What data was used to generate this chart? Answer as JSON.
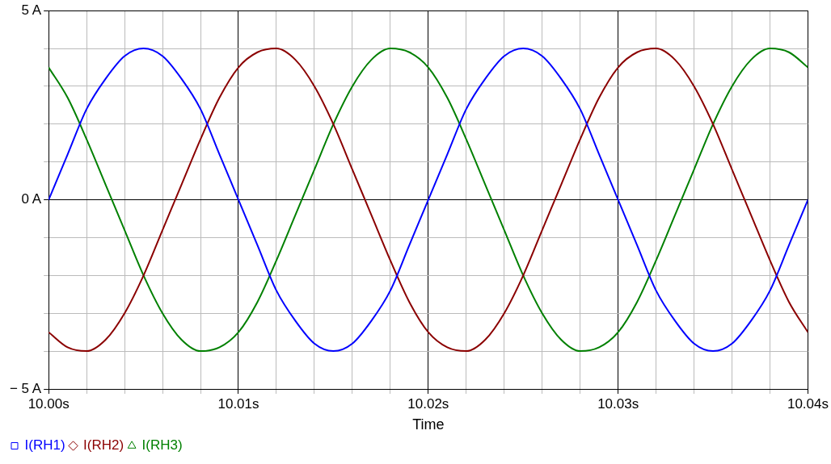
{
  "chart_data": {
    "type": "line",
    "xlabel": "Time",
    "legend": "bottom left",
    "grid": true,
    "line_style": "solid",
    "x": [
      10.0,
      10.001,
      10.002,
      10.003,
      10.004,
      10.005,
      10.006,
      10.007,
      10.008,
      10.009,
      10.01,
      10.011,
      10.012,
      10.013,
      10.014,
      10.015,
      10.016,
      10.017,
      10.018,
      10.019,
      10.02,
      10.021,
      10.022,
      10.023,
      10.024,
      10.025,
      10.026,
      10.027,
      10.028,
      10.029,
      10.03,
      10.031,
      10.032,
      10.033,
      10.034,
      10.035,
      10.036,
      10.037,
      10.038,
      10.039,
      10.04
    ],
    "xlim": [
      10.0,
      10.04
    ],
    "xticks": [
      {
        "value": 10.0,
        "label": "10.00s"
      },
      {
        "value": 10.002,
        "label": null
      },
      {
        "value": 10.004,
        "label": null
      },
      {
        "value": 10.006,
        "label": null
      },
      {
        "value": 10.008,
        "label": null
      },
      {
        "value": 10.01,
        "label": "10.01s"
      },
      {
        "value": 10.012,
        "label": null
      },
      {
        "value": 10.014,
        "label": null
      },
      {
        "value": 10.016,
        "label": null
      },
      {
        "value": 10.018,
        "label": null
      },
      {
        "value": 10.02,
        "label": "10.02s"
      },
      {
        "value": 10.022,
        "label": null
      },
      {
        "value": 10.024,
        "label": null
      },
      {
        "value": 10.026,
        "label": null
      },
      {
        "value": 10.028,
        "label": null
      },
      {
        "value": 10.03,
        "label": "10.03s"
      },
      {
        "value": 10.032,
        "label": null
      },
      {
        "value": 10.034,
        "label": null
      },
      {
        "value": 10.036,
        "label": null
      },
      {
        "value": 10.038,
        "label": null
      },
      {
        "value": 10.04,
        "label": "10.04s"
      }
    ],
    "ylim": [
      -5,
      5
    ],
    "yticks": [
      {
        "value": -5,
        "label": "− 5 A"
      },
      {
        "value": -4,
        "label": null
      },
      {
        "value": -3,
        "label": null
      },
      {
        "value": -2,
        "label": null
      },
      {
        "value": -1,
        "label": null
      },
      {
        "value": 0,
        "label": "0 A"
      },
      {
        "value": 1,
        "label": null
      },
      {
        "value": 2,
        "label": null
      },
      {
        "value": 3,
        "label": null
      },
      {
        "value": 4,
        "label": null
      },
      {
        "value": 5,
        "label": "5 A"
      }
    ],
    "series": [
      {
        "name": "I(RH1)",
        "color": "#0000ff",
        "values": [
          0,
          1.2,
          2.4,
          3.2,
          3.8,
          4,
          3.8,
          3.2,
          2.4,
          1.2,
          0,
          -1.2,
          -2.4,
          -3.2,
          -3.8,
          -4,
          -3.8,
          -3.2,
          -2.4,
          -1.2,
          0,
          1.2,
          2.4,
          3.2,
          3.8,
          4,
          3.8,
          3.2,
          2.4,
          1.2,
          0,
          -1.2,
          -2.4,
          -3.2,
          -3.8,
          -4,
          -3.8,
          -3.2,
          -2.4,
          -1.2,
          0
        ]
      },
      {
        "name": "I(RH2)",
        "color": "#8b0000",
        "values": [
          -3.5,
          -3.9,
          -4.0,
          -3.7,
          -3.0,
          -2.0,
          -0.8,
          0.4,
          1.6,
          2.7,
          3.5,
          3.9,
          4.0,
          3.7,
          3.0,
          2.0,
          0.8,
          -0.4,
          -1.6,
          -2.7,
          -3.5,
          -3.9,
          -4.0,
          -3.7,
          -3.0,
          -2.0,
          -0.8,
          0.4,
          1.6,
          2.7,
          3.5,
          3.9,
          4.0,
          3.7,
          3.0,
          2.0,
          0.8,
          -0.4,
          -1.6,
          -2.7,
          -3.5
        ]
      },
      {
        "name": "I(RH3)",
        "color": "#008000",
        "values": [
          3.5,
          2.7,
          1.6,
          0.4,
          -0.8,
          -2.0,
          -3.0,
          -3.7,
          -4.0,
          -3.9,
          -3.5,
          -2.7,
          -1.6,
          -0.4,
          0.8,
          2.0,
          3.0,
          3.7,
          4.0,
          3.9,
          3.5,
          2.7,
          1.6,
          0.4,
          -0.8,
          -2.0,
          -3.0,
          -3.7,
          -4.0,
          -3.9,
          -3.5,
          -2.7,
          -1.6,
          -0.4,
          0.8,
          2.0,
          3.0,
          3.7,
          4.0,
          3.9,
          3.5
        ]
      }
    ]
  }
}
